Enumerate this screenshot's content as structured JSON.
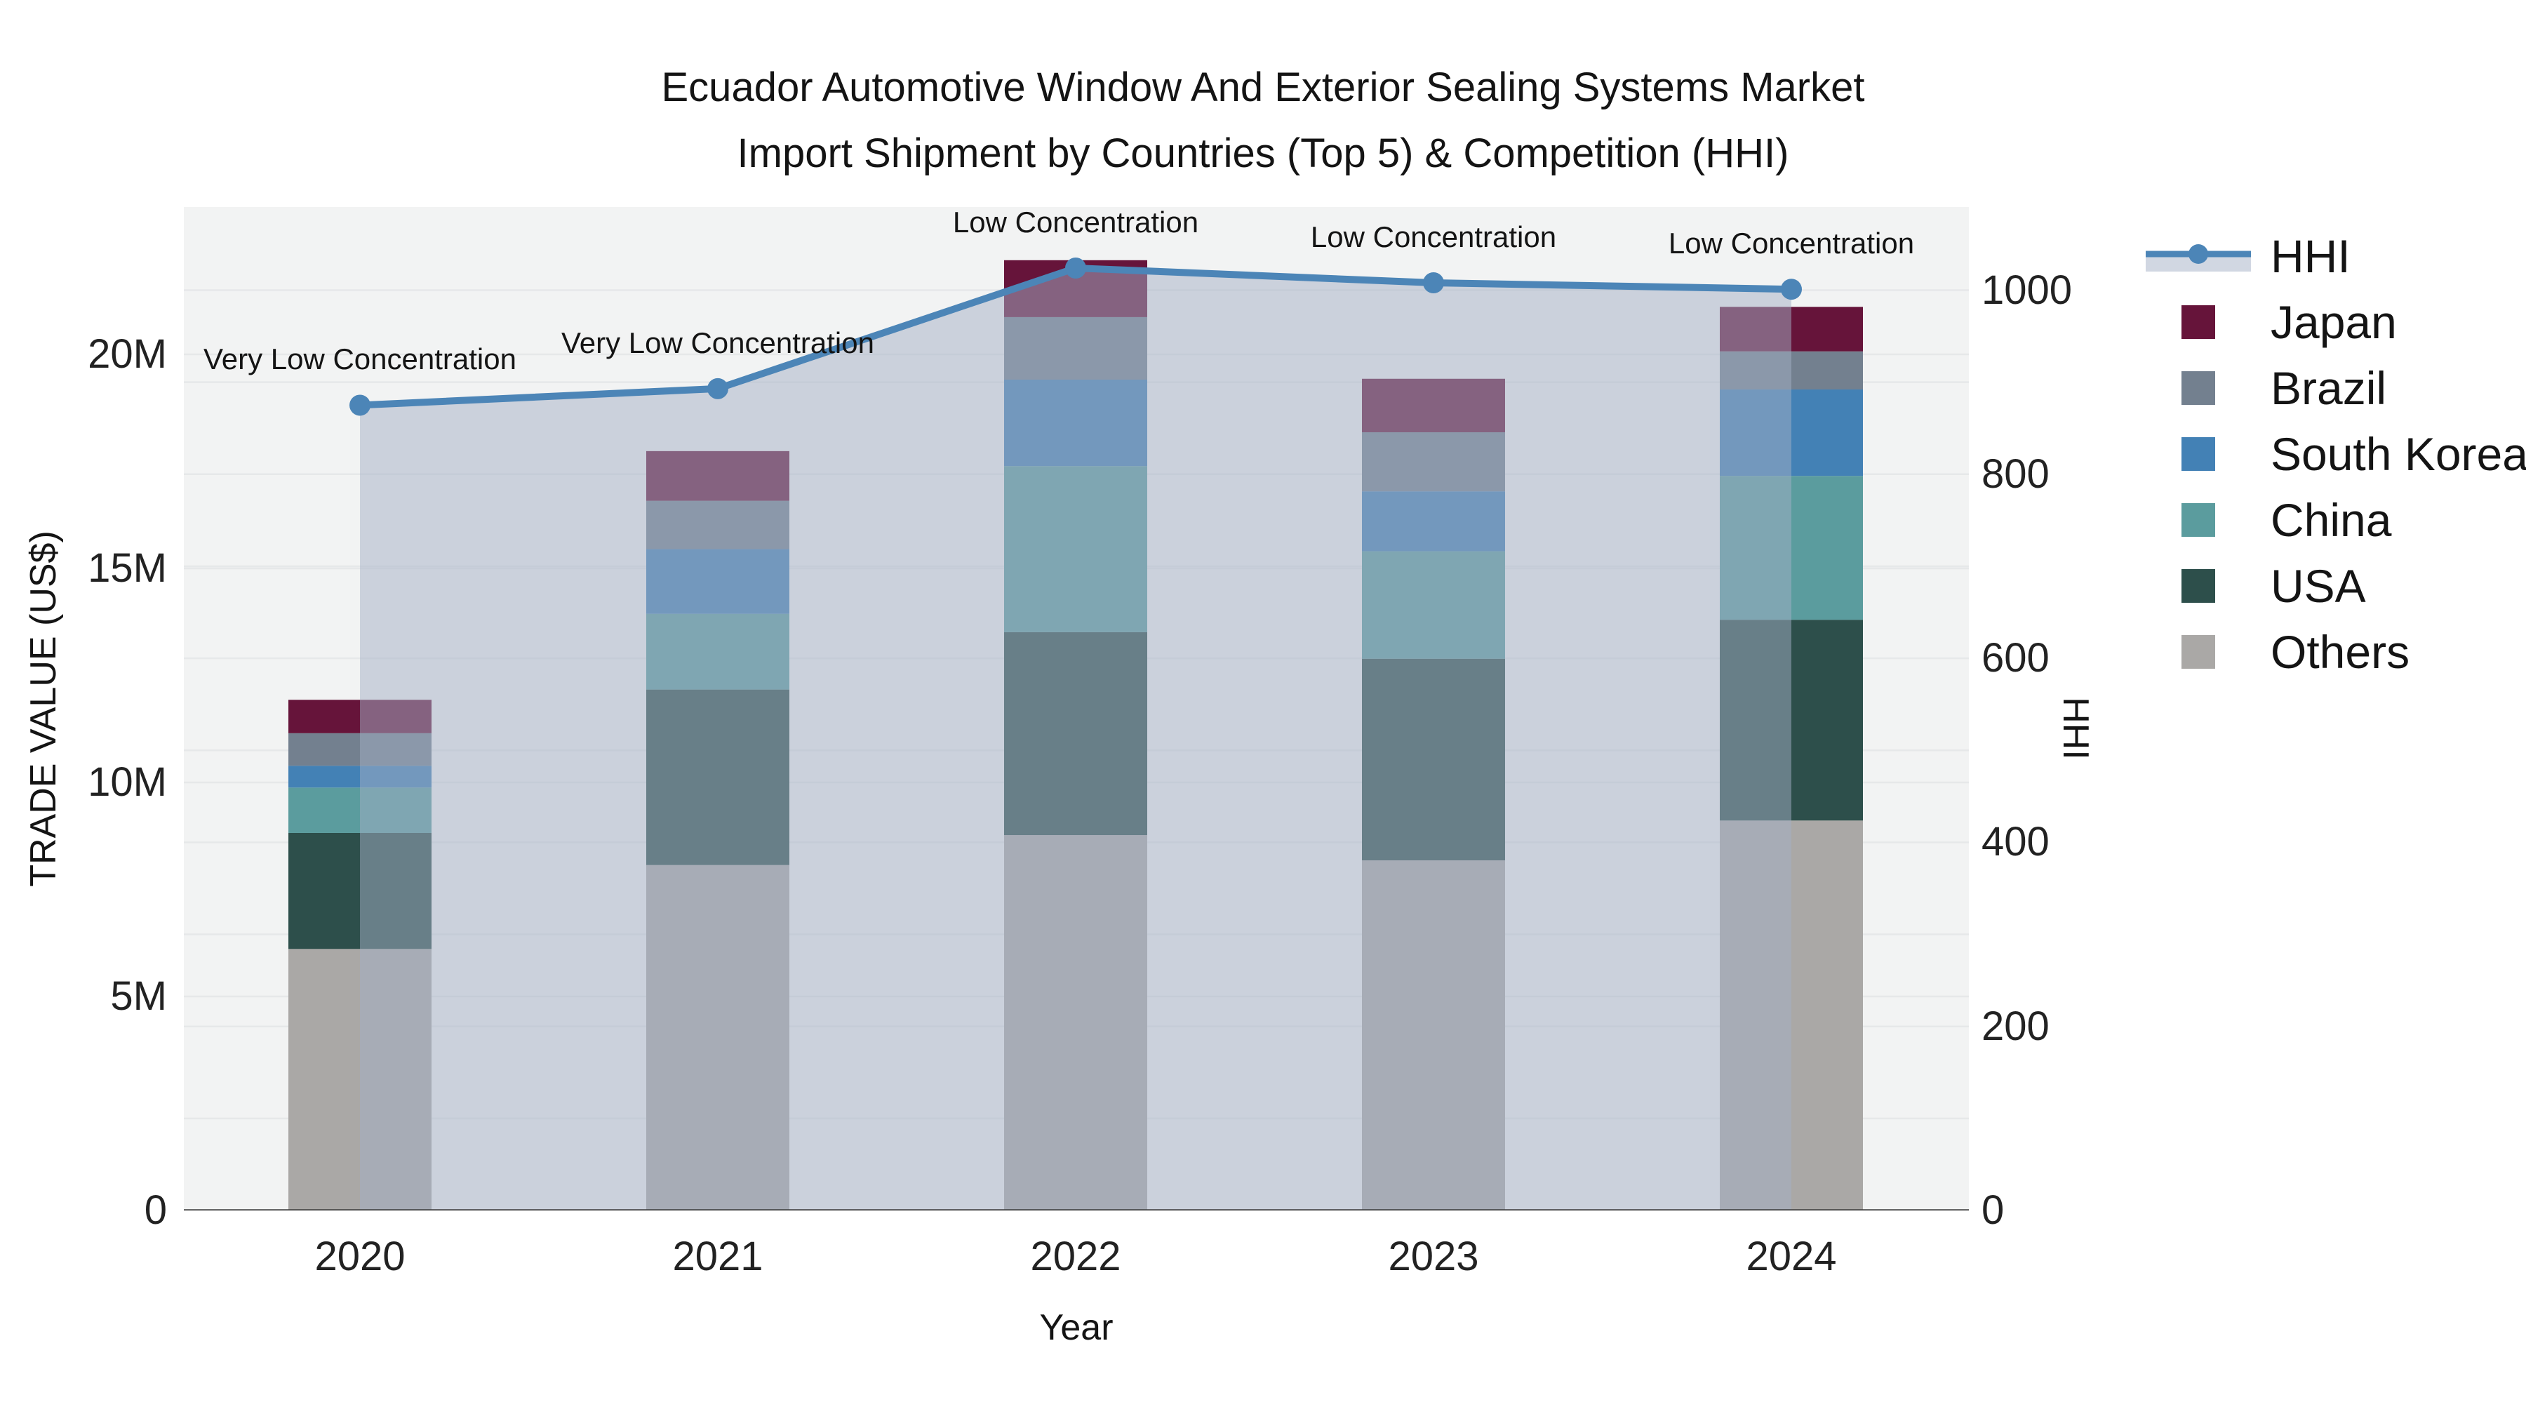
{
  "title": {
    "line1": "Ecuador Automotive Window And Exterior Sealing Systems Market",
    "line2": "Import Shipment by Countries (Top 5) & Competition (HHI)"
  },
  "chart_data": {
    "type": "bar",
    "subtype": "stacked bars (left axis, trade value US$ millions) + HHI line with area fill (right axis)",
    "categories": [
      "2020",
      "2021",
      "2022",
      "2023",
      "2024"
    ],
    "series": [
      {
        "name": "Japan",
        "color": "#66143a",
        "values": [
          0.78,
          1.16,
          1.33,
          1.25,
          1.04
        ]
      },
      {
        "name": "Brazil",
        "color": "#73808f",
        "values": [
          0.76,
          1.13,
          1.46,
          1.38,
          0.89
        ]
      },
      {
        "name": "South Korea",
        "color": "#4381b5",
        "values": [
          0.51,
          1.51,
          2.02,
          1.4,
          2.02
        ]
      },
      {
        "name": "China",
        "color": "#5b9c9e",
        "values": [
          1.06,
          1.77,
          3.88,
          2.51,
          3.36
        ]
      },
      {
        "name": "USA",
        "color": "#2d4f4b",
        "values": [
          2.71,
          4.1,
          4.74,
          4.71,
          4.69
        ]
      },
      {
        "name": "Others",
        "color": "#aaa8a6",
        "values": [
          6.11,
          8.07,
          8.77,
          8.18,
          9.11
        ]
      }
    ],
    "bar_totals_millions": [
      11.93,
      17.74,
      22.2,
      19.43,
      21.11
    ],
    "hhi": {
      "name": "HHI",
      "line_color": "#4c85b7",
      "fill_color": "rgba(163,175,197,0.5)",
      "values": [
        875,
        893,
        1024,
        1008,
        1001
      ]
    },
    "annotations": [
      "Very Low Concentration",
      "Very Low Concentration",
      "Low Concentration",
      "Low Concentration",
      "Low Concentration"
    ],
    "y_left": {
      "label": "TRADE VALUE (US$)",
      "tick_labels": [
        "0",
        "5M",
        "10M",
        "15M",
        "20M"
      ],
      "tick_values": [
        0,
        5,
        10,
        15,
        20
      ],
      "max": 23.4
    },
    "y_right": {
      "label": "HHI",
      "tick_labels": [
        "0",
        "200",
        "400",
        "600",
        "800",
        "1000"
      ],
      "tick_values": [
        0,
        200,
        400,
        600,
        800,
        1000
      ],
      "max": 1090
    },
    "x": {
      "label": "Year"
    },
    "legend_order": [
      "HHI",
      "Japan",
      "Brazil",
      "South Korea",
      "China",
      "USA",
      "Others"
    ],
    "grid": true,
    "legend_position": "right"
  },
  "style": {
    "plot_bg": "#f2f3f3",
    "grid_color": "#e6e8e9",
    "axis_line_color": "#3f3f3f",
    "text_color": "#141414"
  }
}
